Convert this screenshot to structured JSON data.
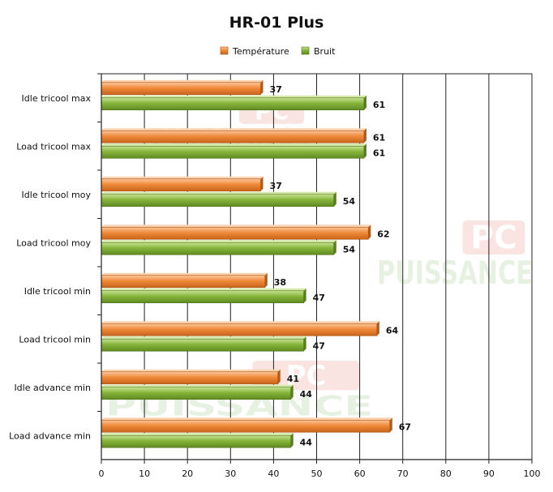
{
  "chart_data": {
    "type": "bar",
    "orientation": "horizontal",
    "title": "HR-01 Plus",
    "categories": [
      "Idle tricool max",
      "Load tricool max",
      "Idle tricool moy",
      "Load tricool moy",
      "Idle tricool min",
      "Load tricool min",
      "Idle advance min",
      "Load advance min"
    ],
    "series": [
      {
        "name": "Température",
        "color": "#f08a3a",
        "values": [
          37,
          61,
          37,
          62,
          38,
          64,
          41,
          67
        ]
      },
      {
        "name": "Bruit",
        "color": "#86b53a",
        "values": [
          61,
          61,
          54,
          54,
          47,
          47,
          44,
          44
        ]
      }
    ],
    "xlim": [
      0,
      100
    ],
    "xticks": [
      "0",
      "10",
      "20",
      "30",
      "40",
      "50",
      "60",
      "70",
      "80",
      "90",
      "100"
    ],
    "grid": true,
    "legend_position": "top",
    "xlabel": "",
    "ylabel": ""
  },
  "watermark": {
    "brand": "PUISSANCE",
    "badge": "PC"
  }
}
